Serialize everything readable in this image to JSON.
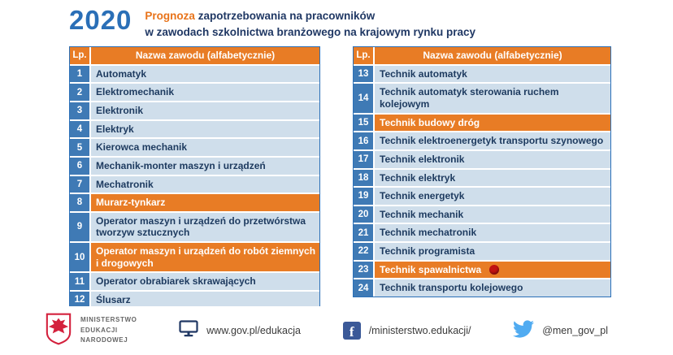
{
  "header": {
    "year": "2020",
    "title_accent": "Prognoza",
    "title_rest": " zapotrzebowania na pracowników",
    "title_line2": "w zawodach szkolnictwa branżowego na krajowym rynku pracy"
  },
  "tables": [
    {
      "headers": {
        "lp": "Lp.",
        "name": "Nazwa zawodu (alfabetycznie)"
      },
      "rows": [
        {
          "lp": "1",
          "name": "Automatyk",
          "highlight": false
        },
        {
          "lp": "2",
          "name": "Elektromechanik",
          "highlight": false
        },
        {
          "lp": "3",
          "name": "Elektronik",
          "highlight": false
        },
        {
          "lp": "4",
          "name": "Elektryk",
          "highlight": false
        },
        {
          "lp": "5",
          "name": "Kierowca mechanik",
          "highlight": false
        },
        {
          "lp": "6",
          "name": "Mechanik-monter maszyn i urządzeń",
          "highlight": false
        },
        {
          "lp": "7",
          "name": "Mechatronik",
          "highlight": false
        },
        {
          "lp": "8",
          "name": "Murarz-tynkarz",
          "highlight": true
        },
        {
          "lp": "9",
          "name": "Operator maszyn i urządzeń do przetwórstwa tworzyw sztucznych",
          "highlight": false
        },
        {
          "lp": "10",
          "name": "Operator maszyn i urządzeń do robót ziemnych i drogowych",
          "highlight": true
        },
        {
          "lp": "11",
          "name": "Operator obrabiarek skrawających",
          "highlight": false
        },
        {
          "lp": "12",
          "name": "Ślusarz",
          "highlight": false
        }
      ]
    },
    {
      "headers": {
        "lp": "Lp.",
        "name": "Nazwa zawodu (alfabetycznie)"
      },
      "rows": [
        {
          "lp": "13",
          "name": "Technik automatyk",
          "highlight": false
        },
        {
          "lp": "14",
          "name": "Technik automatyk sterowania ruchem kolejowym",
          "highlight": false
        },
        {
          "lp": "15",
          "name": "Technik budowy dróg",
          "highlight": true
        },
        {
          "lp": "16",
          "name": "Technik elektroenergetyk transportu szynowego",
          "highlight": false
        },
        {
          "lp": "17",
          "name": "Technik elektronik",
          "highlight": false
        },
        {
          "lp": "18",
          "name": "Technik elektryk",
          "highlight": false
        },
        {
          "lp": "19",
          "name": "Technik energetyk",
          "highlight": false
        },
        {
          "lp": "20",
          "name": "Technik mechanik",
          "highlight": false
        },
        {
          "lp": "21",
          "name": "Technik mechatronik",
          "highlight": false
        },
        {
          "lp": "22",
          "name": "Technik programista",
          "highlight": false
        },
        {
          "lp": "23",
          "name": "Technik spawalnictwa",
          "highlight": true,
          "marker": true
        },
        {
          "lp": "24",
          "name": "Technik transportu kolejowego",
          "highlight": false
        }
      ]
    }
  ],
  "footer": {
    "ministry": {
      "line1": "MINISTERSTWO",
      "line2": "EDUKACJI",
      "line3": "NARODOWEJ"
    },
    "website": "www.gov.pl/edukacja",
    "facebook": "/ministerstwo.edukacji/",
    "facebook_icon_letter": "f",
    "twitter": "@men_gov_pl"
  },
  "colors": {
    "accent_orange": "#e87c25",
    "lp_blue": "#3f7ab5",
    "row_light_blue": "#cfdeeb",
    "navy": "#203864",
    "year_blue": "#2a6fb7",
    "marker_red": "#c11212",
    "facebook_blue": "#3b5998",
    "twitter_blue": "#50abf1",
    "eagle_red": "#d4213d"
  }
}
